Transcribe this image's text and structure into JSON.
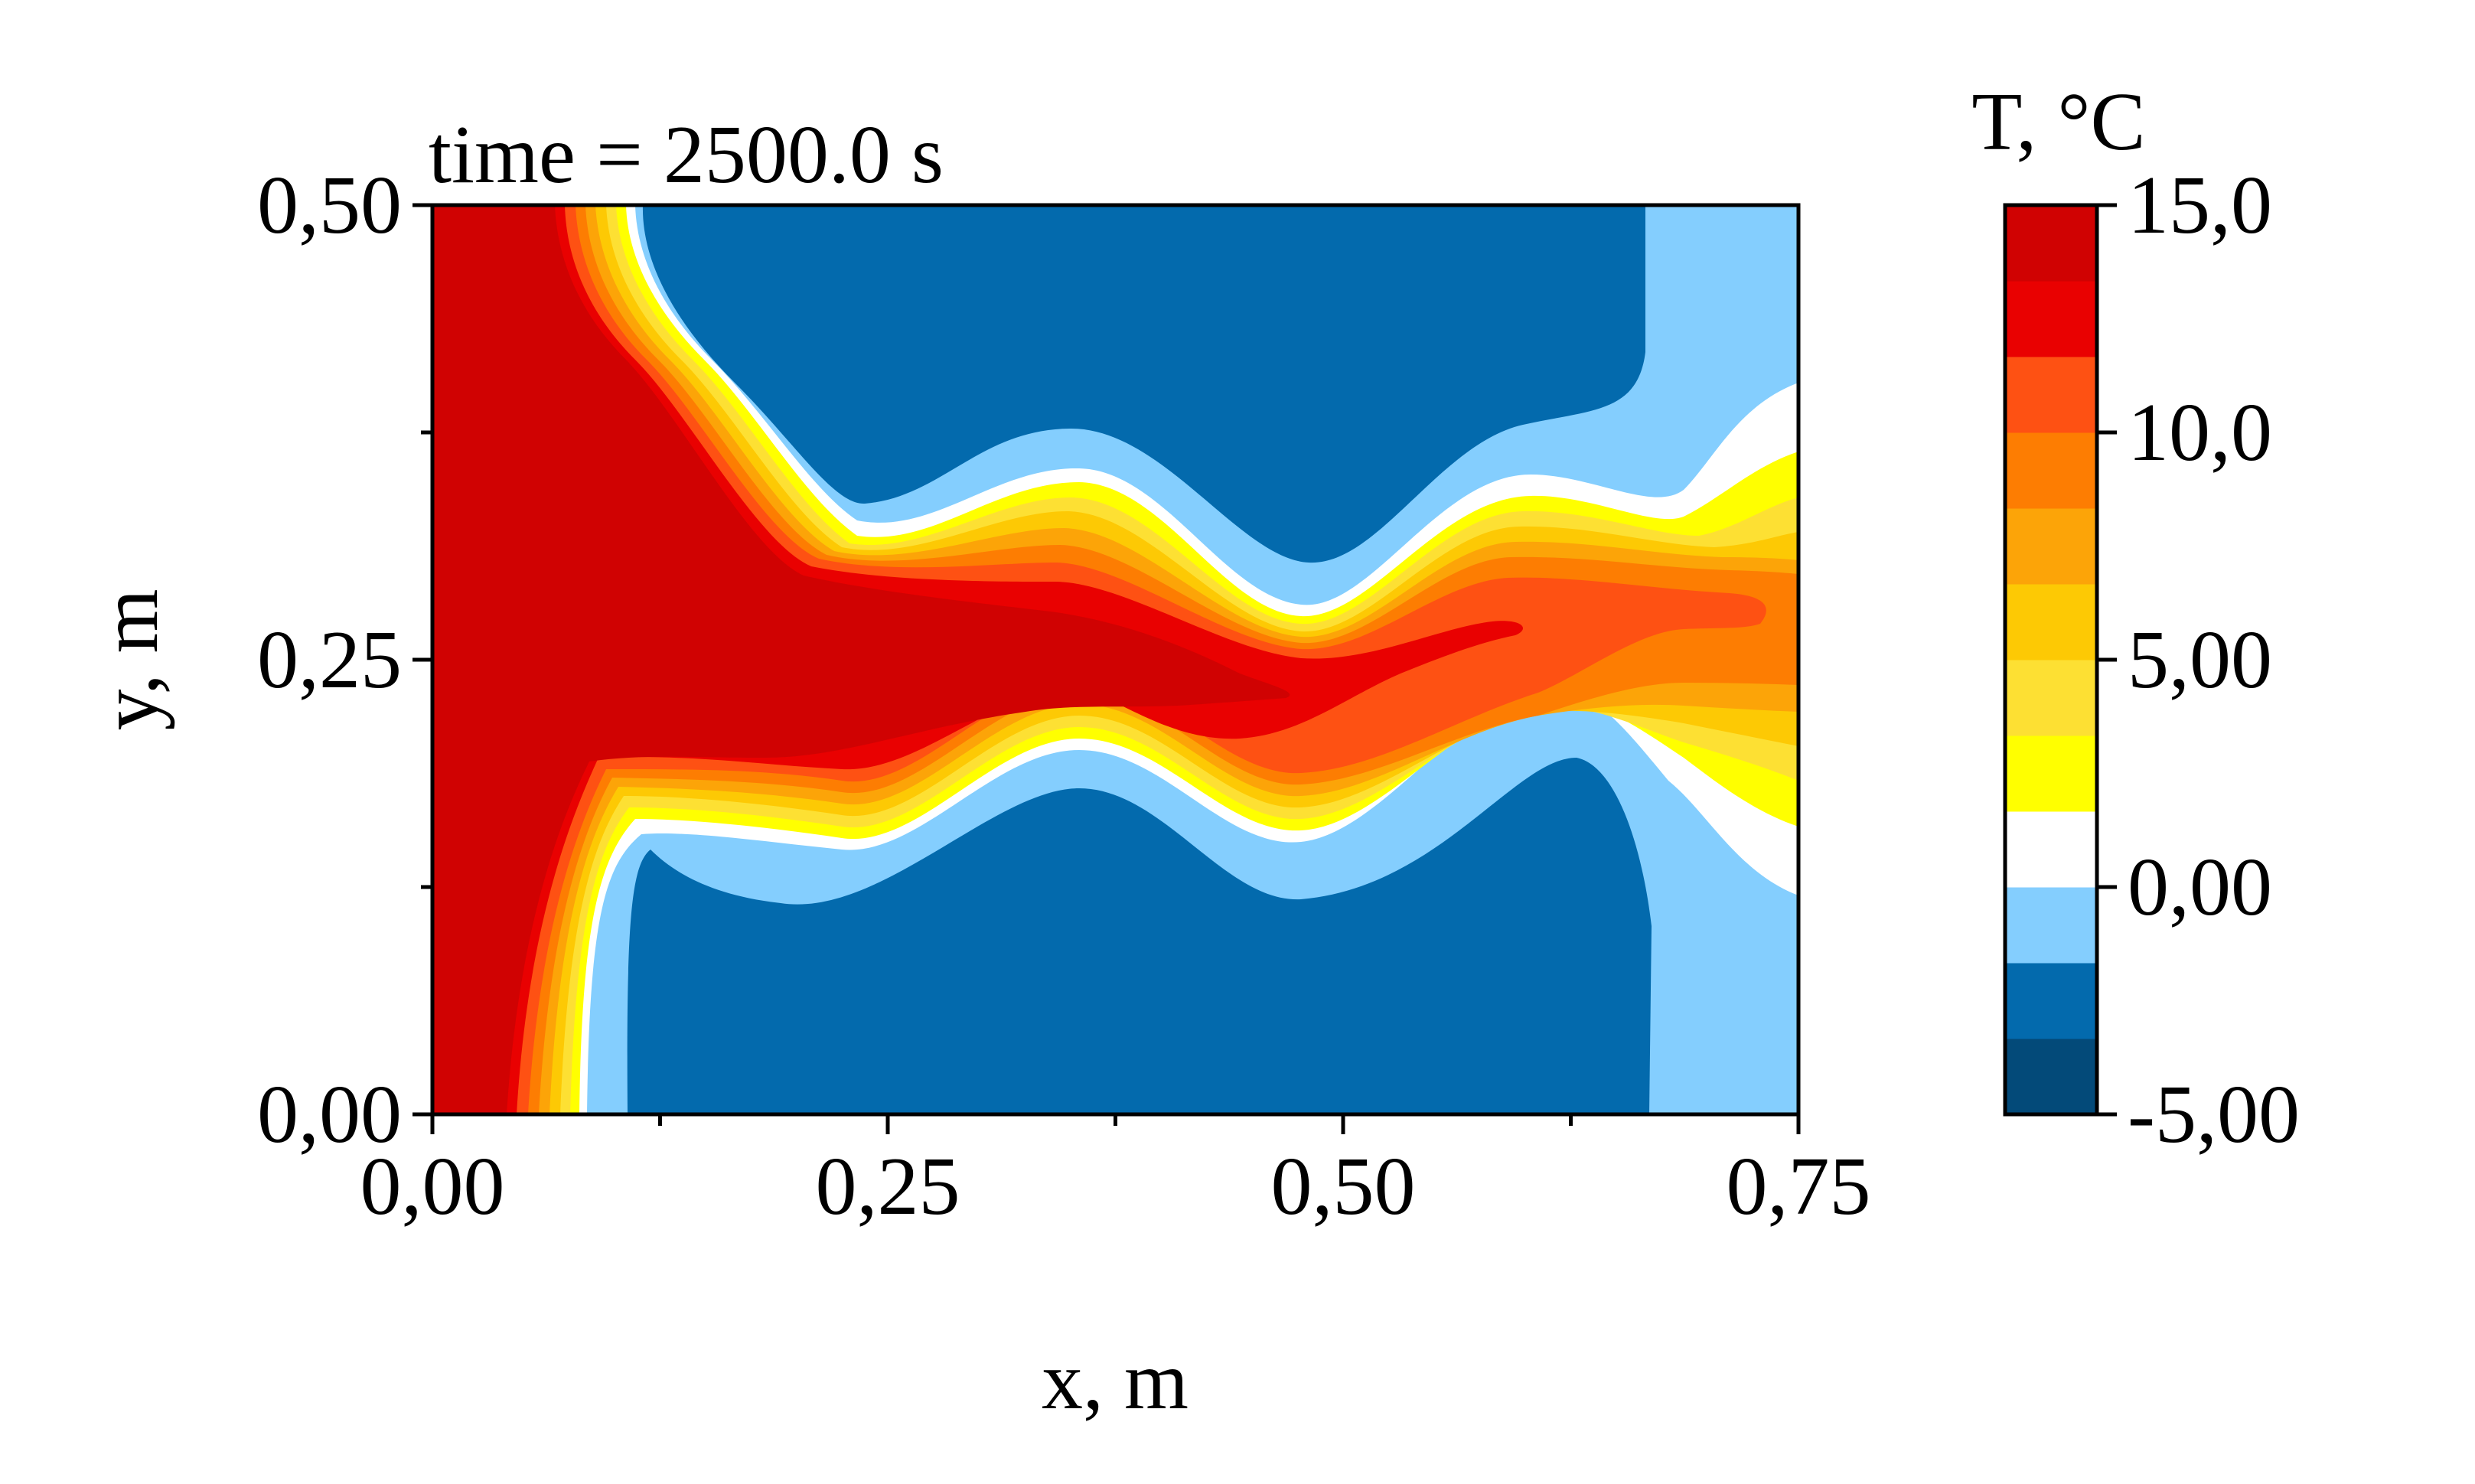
{
  "chart_data": {
    "type": "heatmap",
    "title": "time = 2500.0 s",
    "xlabel": "x, m",
    "ylabel": "y, m",
    "xlim": [
      0,
      0.75
    ],
    "ylim": [
      0,
      0.5
    ],
    "x_ticks": [
      {
        "value": 0.0,
        "label": "0,00"
      },
      {
        "value": 0.25,
        "label": "0,25"
      },
      {
        "value": 0.5,
        "label": "0,50"
      },
      {
        "value": 0.75,
        "label": "0,75"
      }
    ],
    "x_minor_ticks": [
      0.125,
      0.375,
      0.625
    ],
    "y_ticks": [
      {
        "value": 0.0,
        "label": "0,00"
      },
      {
        "value": 0.25,
        "label": "0,25"
      },
      {
        "value": 0.5,
        "label": "0,50"
      }
    ],
    "y_minor_ticks": [
      0.125,
      0.375
    ],
    "colorbar": {
      "title": "T, °C",
      "range": [
        -5.0,
        15.0
      ],
      "tick_labels": [
        {
          "value": 15.0,
          "label": "15,0"
        },
        {
          "value": 10.0,
          "label": "10,0"
        },
        {
          "value": 5.0,
          "label": "5,00"
        },
        {
          "value": 0.0,
          "label": "0,00"
        },
        {
          "value": -5.0,
          "label": "-5,00"
        }
      ],
      "levels": [
        -5.0,
        -3.333,
        -1.667,
        0.0,
        1.667,
        3.333,
        5.0,
        6.667,
        8.333,
        10.0,
        11.667,
        13.333,
        15.0
      ],
      "colors": [
        "#034a79",
        "#036aad",
        "#84cefe",
        "#ffffff",
        "#ffff00",
        "#fde033",
        "#fdc904",
        "#fca408",
        "#fd7d02",
        "#fe5113",
        "#e90101",
        "#d00202"
      ]
    },
    "field": {
      "description_levels": "contour bands of temperature",
      "hot_inflow_x": [
        0.0,
        0.05
      ],
      "hot_core_tip_x": 0.6,
      "core_y": 0.25,
      "cold_region_x": [
        0.1,
        0.67
      ],
      "wave_centers_x": [
        0.36,
        0.48,
        0.61
      ]
    }
  }
}
